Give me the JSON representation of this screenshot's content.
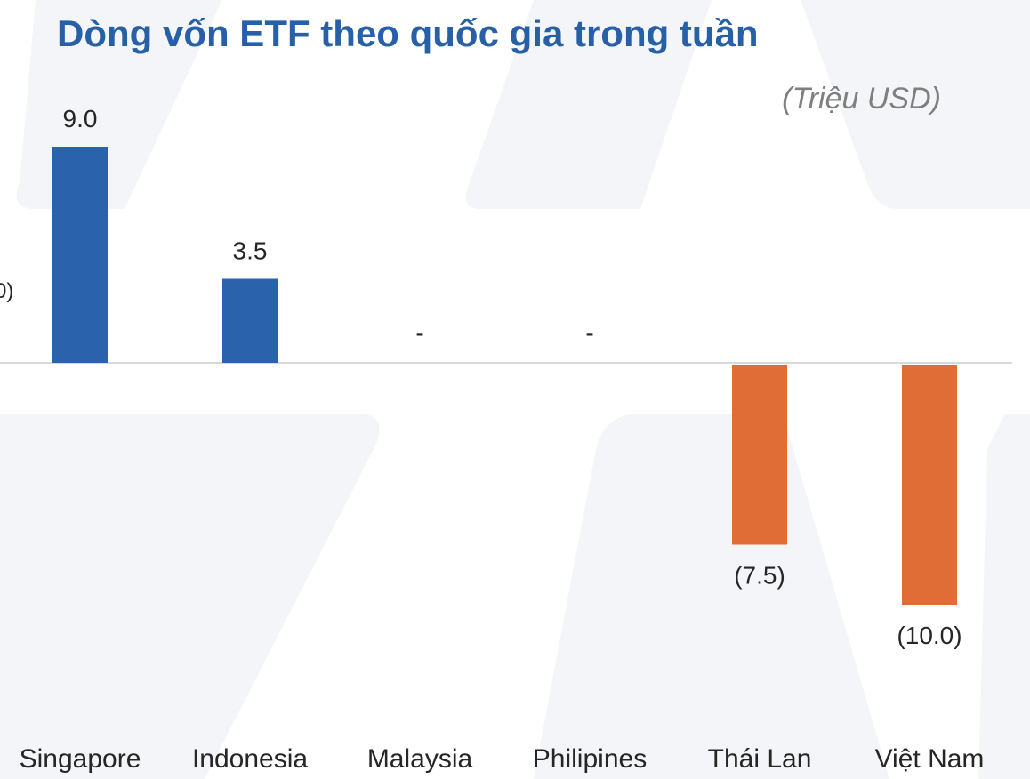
{
  "title": "Dòng vốn ETF theo quốc gia trong tuần",
  "unit": "(Triệu USD)",
  "left_stub": "0)",
  "colors": {
    "positive": "#2A62AC",
    "negative": "#E06D36",
    "title": "#2860A8",
    "axis": "#D9D9D9"
  },
  "chart_data": {
    "type": "bar",
    "categories": [
      "Singapore",
      "Indonesia",
      "Malaysia",
      "Philipines",
      "Thái Lan",
      "Việt Nam"
    ],
    "values": [
      9.0,
      3.5,
      0,
      0,
      -7.5,
      -10.0
    ],
    "data_labels": [
      "9.0",
      "3.5",
      "-",
      "-",
      "(7.5)",
      "(10.0)"
    ],
    "title": "Dòng vốn ETF theo quốc gia trong tuần",
    "ylabel": "",
    "unit": "(Triệu USD)",
    "ylim": [
      -10,
      9
    ],
    "grid": false,
    "legend": "none"
  }
}
